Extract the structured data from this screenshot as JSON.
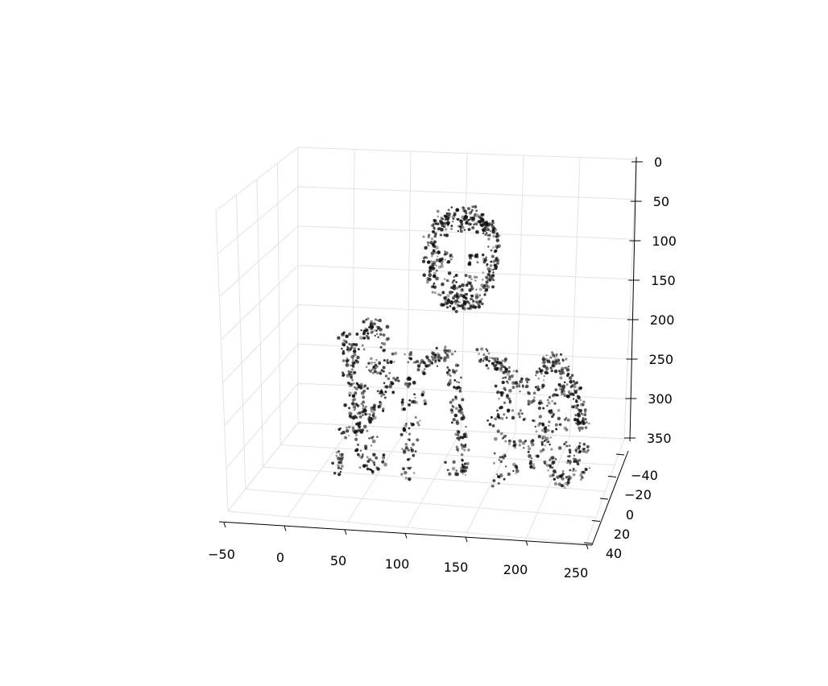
{
  "chart_data": {
    "type": "scatter",
    "title": "",
    "xlabel": "",
    "ylabel": "",
    "zlabel": "",
    "point_color": "#111111",
    "grid": true,
    "x_ticks": [
      "−50",
      "0",
      "50",
      "100",
      "150",
      "200",
      "250"
    ],
    "y_ticks": [
      "−40",
      "−20",
      "0",
      "20",
      "40"
    ],
    "z_ticks": [
      "0",
      "50",
      "100",
      "150",
      "200",
      "250",
      "300",
      "350"
    ],
    "xlim": [
      -50,
      250
    ],
    "ylim": [
      -40,
      40
    ],
    "zlim": [
      0,
      350
    ],
    "z_inverted": true,
    "series": [
      {
        "description_points": "head outline and hair",
        "x": [
          92,
          97,
          103,
          110,
          118,
          125,
          131,
          137,
          141,
          144,
          146,
          146,
          145,
          143,
          95,
          93,
          92,
          93,
          95,
          100,
          106,
          113,
          120,
          127,
          133,
          138,
          142,
          100,
          110,
          120,
          130,
          140,
          105,
          115,
          125,
          135,
          98,
          145,
          103,
          108,
          130,
          135,
          110,
          128,
          115,
          120,
          125,
          113,
          119,
          126
        ],
        "z": [
          38,
          28,
          20,
          14,
          12,
          12,
          15,
          20,
          27,
          36,
          46,
          60,
          75,
          90,
          50,
          62,
          75,
          88,
          100,
          112,
          122,
          128,
          130,
          128,
          122,
          112,
          100,
          30,
          22,
          20,
          22,
          32,
          35,
          28,
          26,
          30,
          80,
          80,
          70,
          70,
          70,
          70,
          95,
          95,
          110,
          112,
          110,
          125,
          128,
          125
        ],
        "y": [
          0,
          0,
          0,
          0,
          0,
          0,
          0,
          0,
          0,
          0,
          0,
          0,
          0,
          0,
          0,
          0,
          0,
          0,
          0,
          0,
          0,
          0,
          0,
          0,
          0,
          0,
          0,
          0,
          0,
          0,
          0,
          0,
          0,
          0,
          0,
          0,
          0,
          0,
          0,
          0,
          0,
          0,
          0,
          0,
          0,
          0,
          0,
          0,
          0,
          0
        ]
      },
      {
        "description_points": "body, tie and arms",
        "x": [
          78,
          76,
          75,
          75,
          76,
          77,
          155,
          157,
          158,
          158,
          157,
          156,
          112,
          114,
          116,
          118,
          120,
          122,
          124,
          126,
          117,
          119,
          121,
          115,
          123,
          88,
          92,
          96,
          100,
          104,
          140,
          145,
          150,
          155,
          160,
          165,
          170,
          175,
          82,
          80,
          86,
          150,
          170,
          168,
          172,
          160
        ],
        "z": [
          200,
          230,
          260,
          290,
          320,
          345,
          200,
          230,
          260,
          290,
          320,
          345,
          190,
          210,
          230,
          250,
          270,
          290,
          310,
          330,
          220,
          260,
          300,
          335,
          340,
          210,
          205,
          200,
          196,
          192,
          190,
          195,
          200,
          205,
          210,
          215,
          220,
          225,
          280,
          310,
          250,
          270,
          300,
          330,
          260,
          240
        ],
        "y": [
          0,
          0,
          0,
          0,
          0,
          0,
          0,
          0,
          0,
          0,
          0,
          0,
          0,
          0,
          0,
          0,
          0,
          0,
          0,
          0,
          0,
          0,
          0,
          0,
          0,
          0,
          0,
          0,
          0,
          0,
          0,
          0,
          0,
          0,
          0,
          0,
          0,
          0,
          0,
          0,
          0,
          0,
          0,
          0,
          0,
          0
        ]
      },
      {
        "description_points": "left hand",
        "x": [
          20,
          22,
          24,
          26,
          28,
          30,
          34,
          38,
          42,
          46,
          50,
          54,
          58,
          62,
          60,
          56,
          52,
          48,
          44,
          40,
          36,
          32,
          28,
          24,
          30,
          34,
          40,
          46,
          52,
          45,
          38,
          32,
          26,
          22,
          18,
          16,
          42,
          48,
          54,
          36
        ],
        "z": [
          180,
          190,
          200,
          215,
          230,
          245,
          260,
          270,
          275,
          272,
          262,
          250,
          240,
          230,
          200,
          185,
          170,
          162,
          160,
          165,
          175,
          185,
          205,
          225,
          300,
          320,
          335,
          340,
          330,
          310,
          290,
          280,
          270,
          300,
          330,
          345,
          215,
          210,
          220,
          240
        ],
        "y": [
          0,
          0,
          0,
          0,
          0,
          0,
          0,
          0,
          0,
          0,
          0,
          0,
          0,
          0,
          0,
          0,
          0,
          0,
          0,
          0,
          0,
          0,
          0,
          0,
          0,
          0,
          0,
          0,
          0,
          0,
          0,
          0,
          0,
          0,
          0,
          0,
          0,
          0,
          0,
          0
        ]
      },
      {
        "description_points": "right hand",
        "x": [
          185,
          188,
          191,
          194,
          197,
          200,
          204,
          208,
          212,
          216,
          220,
          223,
          226,
          228,
          225,
          221,
          217,
          213,
          209,
          205,
          201,
          197,
          193,
          189,
          195,
          200,
          206,
          212,
          218,
          222,
          226,
          228,
          230,
          182,
          186,
          210,
          214,
          204,
          220,
          198
        ],
        "z": [
          240,
          225,
          212,
          200,
          192,
          188,
          190,
          196,
          205,
          215,
          228,
          240,
          255,
          270,
          300,
          320,
          335,
          342,
          340,
          330,
          315,
          300,
          285,
          270,
          250,
          240,
          230,
          225,
          235,
          250,
          265,
          300,
          330,
          300,
          320,
          270,
          300,
          260,
          310,
          280
        ],
        "y": [
          0,
          0,
          0,
          0,
          0,
          0,
          0,
          0,
          0,
          0,
          0,
          0,
          0,
          0,
          0,
          0,
          0,
          0,
          0,
          0,
          0,
          0,
          0,
          0,
          0,
          0,
          0,
          0,
          0,
          0,
          0,
          0,
          0,
          0,
          0,
          0,
          0,
          0,
          0,
          0
        ]
      }
    ]
  }
}
